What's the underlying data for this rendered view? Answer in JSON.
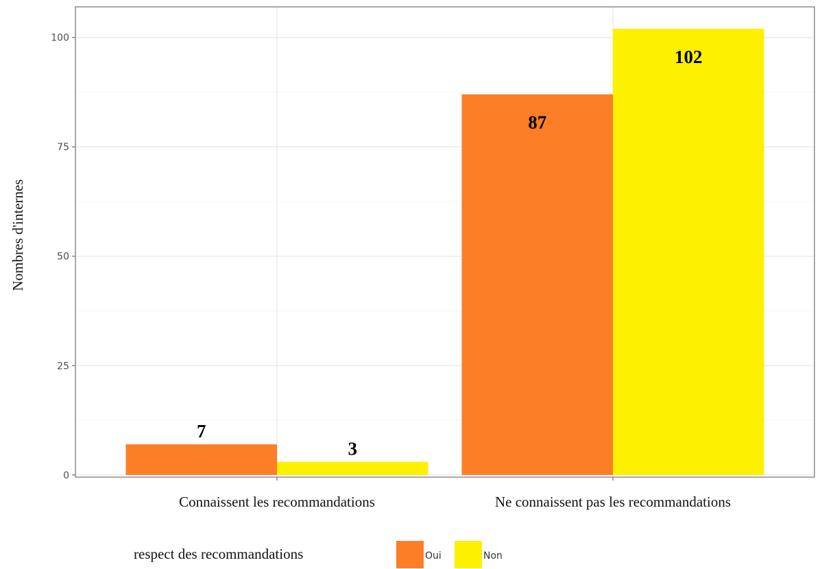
{
  "chart_data": {
    "type": "bar",
    "categories": [
      "Connaissent les recommandations",
      "Ne connaissent pas les recommandations"
    ],
    "series": [
      {
        "name": "Oui",
        "values": [
          7,
          87
        ],
        "color": "#fc7e27"
      },
      {
        "name": "Non",
        "values": [
          3,
          102
        ],
        "color": "#fdf000"
      }
    ],
    "data_labels": [
      [
        "7",
        "87"
      ],
      [
        "3",
        "102"
      ]
    ],
    "ylabel": "Nombres d'internes",
    "xlabel": "",
    "yticks": [
      0,
      25,
      50,
      75,
      100
    ],
    "ylim": [
      -0.5,
      107
    ],
    "grid": true,
    "legend": {
      "title": "respect des recommandations",
      "placement": "bottom"
    }
  }
}
